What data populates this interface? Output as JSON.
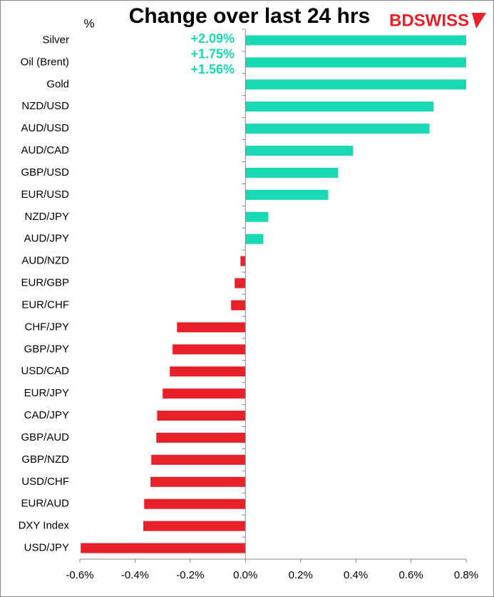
{
  "chart_data": {
    "type": "hbar",
    "title": "Change over last 24 hrs",
    "y_label": "%",
    "logo": "BDSWISS",
    "categories": [
      "Silver",
      "Oil (Brent)",
      "Gold",
      "NZD/USD",
      "AUD/USD",
      "AUD/CAD",
      "GBP/USD",
      "EUR/USD",
      "NZD/JPY",
      "AUD/JPY",
      "AUD/NZD",
      "EUR/GBP",
      "EUR/CHF",
      "CHF/JPY",
      "GBP/JPY",
      "USD/CAD",
      "EUR/JPY",
      "CAD/JPY",
      "GBP/AUD",
      "GBP/NZD",
      "USD/CHF",
      "EUR/AUD",
      "DXY Index",
      "USD/JPY"
    ],
    "values": [
      2.09,
      1.75,
      1.56,
      0.682,
      0.667,
      0.39,
      0.336,
      0.3,
      0.083,
      0.065,
      -0.018,
      -0.039,
      -0.052,
      -0.248,
      -0.264,
      -0.274,
      -0.3,
      -0.32,
      -0.323,
      -0.341,
      -0.344,
      -0.367,
      -0.37,
      -0.597
    ],
    "value_labels": [
      "+2.09%",
      "+1.75%",
      "+1.56%",
      null,
      null,
      null,
      null,
      null,
      null,
      null,
      null,
      null,
      null,
      null,
      null,
      null,
      null,
      null,
      null,
      null,
      null,
      null,
      null,
      null
    ],
    "positive_color": "#19d8b4",
    "negative_color": "#e8202a",
    "xlim": [
      -0.6,
      0.8
    ],
    "xticks": [
      {
        "value": -0.6,
        "label": "-0.6%"
      },
      {
        "value": -0.4,
        "label": "-0.4%"
      },
      {
        "value": -0.2,
        "label": "-0.2%"
      },
      {
        "value": 0,
        "label": "0.0%"
      },
      {
        "value": 0.2,
        "label": "0.2%"
      },
      {
        "value": 0.4,
        "label": "0.4%"
      },
      {
        "value": 0.6,
        "label": "0.6%"
      },
      {
        "value": 0.8,
        "label": "0.8%"
      }
    ]
  }
}
